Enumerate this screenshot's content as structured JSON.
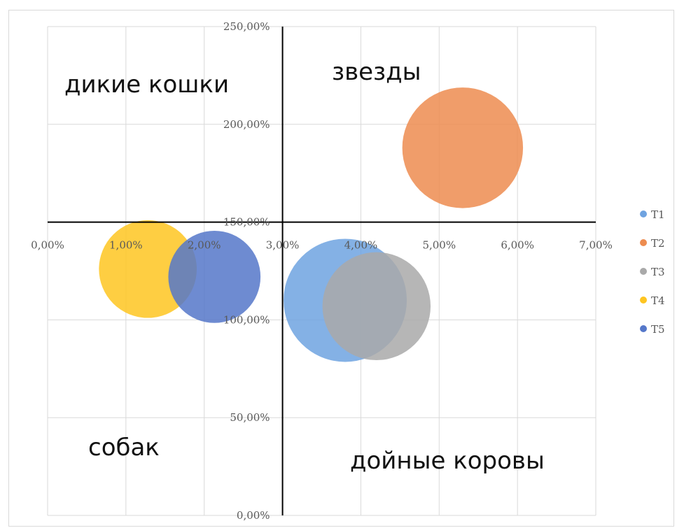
{
  "chart_data": {
    "type": "bubble",
    "x_axis": {
      "min": 0,
      "max": 0.07,
      "step": 0.01,
      "tick_labels": [
        "0,00%",
        "1,00%",
        "2,00%",
        "3,00%",
        "4,00%",
        "5,00%",
        "6,00%",
        "7,00%"
      ]
    },
    "y_axis": {
      "min": 0,
      "max": 2.5,
      "step": 0.5,
      "tick_labels": [
        "0,00%",
        "50,00%",
        "100,00%",
        "150,00%",
        "200,00%",
        "250,00%"
      ],
      "crosses_x_at": 0.03
    },
    "x_axis_crosses_y_at": 1.5,
    "grid": true,
    "legend_position": "right",
    "series": [
      {
        "name": "T1",
        "x": 0.038,
        "y": 1.1,
        "size": 1.0,
        "color": "#6fa3e0"
      },
      {
        "name": "T2",
        "x": 0.053,
        "y": 1.88,
        "size": 0.96,
        "color": "#ed8c50"
      },
      {
        "name": "T3",
        "x": 0.042,
        "y": 1.07,
        "size": 0.77,
        "color": "#a9a9a9"
      },
      {
        "name": "T4",
        "x": 0.0128,
        "y": 1.26,
        "size": 0.63,
        "color": "#fec521"
      },
      {
        "name": "T5",
        "x": 0.0213,
        "y": 1.22,
        "size": 0.56,
        "color": "#5577c9"
      }
    ],
    "annotations": [
      "дикие кошки",
      "звезды",
      "собак",
      "дойные коровы"
    ]
  }
}
